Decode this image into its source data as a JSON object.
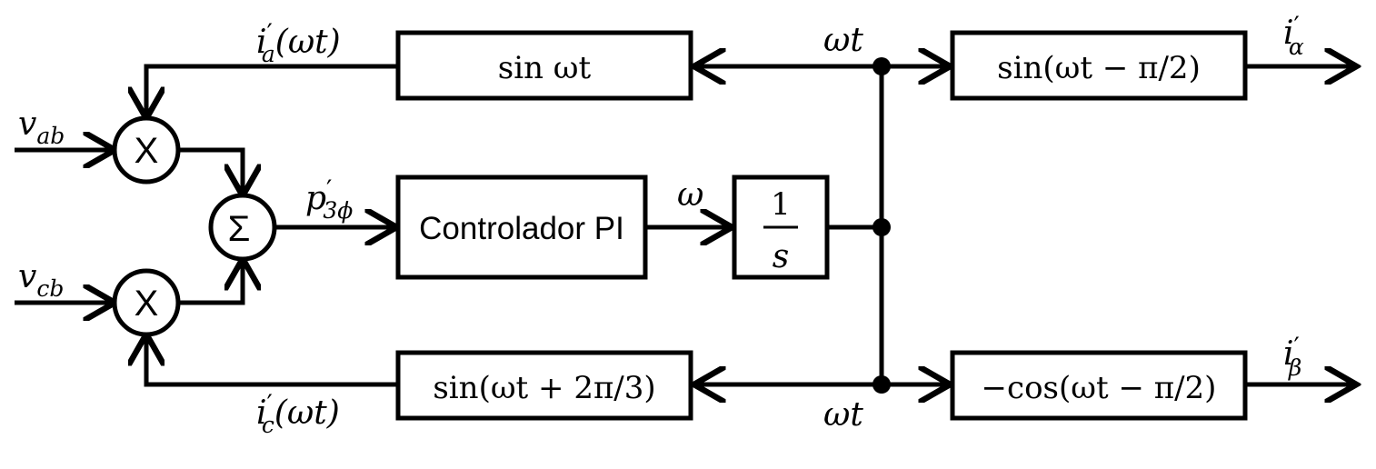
{
  "blocks": {
    "sin_top": "sin ωt",
    "controller": "Controlador PI",
    "integrator_num": "1",
    "integrator_den": "s",
    "sin_bottom": "sin(ωt + 2π/3)",
    "out_alpha_func": "sin(ωt − π/2)",
    "out_beta_func": "−cos(ωt − π/2)"
  },
  "nodes": {
    "multiplier_symbol": "X",
    "sum_symbol": "Σ"
  },
  "signals": {
    "v_ab_main": "v",
    "v_ab_sub": "ab",
    "v_cb_main": "v",
    "v_cb_sub": "cb",
    "i_a_main": "i",
    "i_a_sub": "a",
    "i_a_arg": "(ωt)",
    "i_c_main": "i",
    "i_c_sub": "c",
    "i_c_arg": "(ωt)",
    "p_main": "p",
    "p_sub": "3ϕ",
    "omega": "ω",
    "wt_top": "ωt",
    "wt_bottom": "ωt",
    "i_alpha_main": "i",
    "i_alpha_sub": "α",
    "i_beta_main": "i",
    "i_beta_sub": "β",
    "prime": "′"
  }
}
